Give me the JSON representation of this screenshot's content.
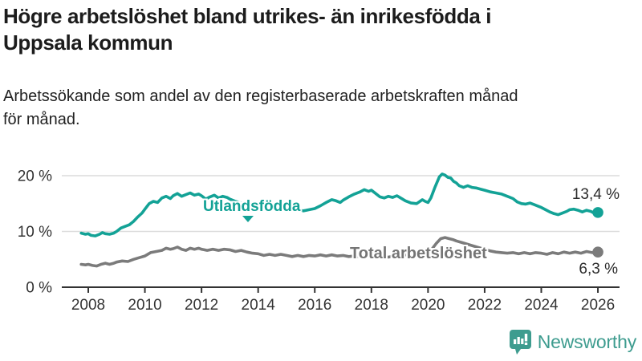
{
  "title": {
    "line1": "Högre arbetslöshet bland utrikes- än inrikesfödda i",
    "line2": "Uppsala kommun"
  },
  "subtitle": {
    "line1": "Arbetssökande som andel av den registerbaserade arbetskraften månad",
    "line2": "för månad."
  },
  "chart_data": {
    "type": "line",
    "title": "Högre arbetslöshet bland utrikes- än inrikesfödda i Uppsala kommun",
    "xlabel": "",
    "ylabel": "",
    "grid": true,
    "legend_position": "inline-labels",
    "xlim": [
      2007.6,
      2026.8
    ],
    "ylim": [
      0,
      21.5
    ],
    "x_ticks": [
      2008,
      2010,
      2012,
      2014,
      2016,
      2018,
      2020,
      2022,
      2024,
      2026
    ],
    "y_ticks": [
      {
        "value": 0,
        "label": "0 %"
      },
      {
        "value": 10,
        "label": "10 %"
      },
      {
        "value": 20,
        "label": "20 %"
      }
    ],
    "series": [
      {
        "name": "Utlandsfödda",
        "color": "#13a296",
        "end_label": "13,4 %",
        "end_value": 13.4,
        "points": [
          [
            2007.75,
            9.7
          ],
          [
            2007.9,
            9.5
          ],
          [
            2008.0,
            9.6
          ],
          [
            2008.1,
            9.3
          ],
          [
            2008.25,
            9.2
          ],
          [
            2008.4,
            9.5
          ],
          [
            2008.5,
            9.8
          ],
          [
            2008.6,
            9.6
          ],
          [
            2008.75,
            9.5
          ],
          [
            2008.9,
            9.7
          ],
          [
            2009.0,
            10.0
          ],
          [
            2009.15,
            10.6
          ],
          [
            2009.3,
            10.9
          ],
          [
            2009.45,
            11.2
          ],
          [
            2009.6,
            11.8
          ],
          [
            2009.75,
            12.6
          ],
          [
            2009.9,
            13.3
          ],
          [
            2010.0,
            14.0
          ],
          [
            2010.15,
            15.0
          ],
          [
            2010.3,
            15.4
          ],
          [
            2010.45,
            15.2
          ],
          [
            2010.6,
            16.0
          ],
          [
            2010.75,
            16.3
          ],
          [
            2010.9,
            15.9
          ],
          [
            2011.0,
            16.4
          ],
          [
            2011.15,
            16.8
          ],
          [
            2011.3,
            16.3
          ],
          [
            2011.45,
            16.6
          ],
          [
            2011.6,
            16.9
          ],
          [
            2011.75,
            16.5
          ],
          [
            2011.9,
            16.7
          ],
          [
            2012.0,
            16.4
          ],
          [
            2012.15,
            15.8
          ],
          [
            2012.3,
            16.2
          ],
          [
            2012.45,
            16.5
          ],
          [
            2012.6,
            16.0
          ],
          [
            2012.75,
            16.3
          ],
          [
            2012.9,
            16.1
          ],
          [
            2013.0,
            15.8
          ],
          [
            2013.2,
            15.4
          ],
          [
            2013.4,
            15.1
          ],
          [
            2013.6,
            14.8
          ],
          [
            2013.8,
            14.6
          ],
          [
            2014.0,
            14.4
          ],
          [
            2014.2,
            14.2
          ],
          [
            2014.4,
            14.0
          ],
          [
            2014.6,
            14.2
          ],
          [
            2014.8,
            14.0
          ],
          [
            2015.0,
            13.9
          ],
          [
            2015.2,
            14.1
          ],
          [
            2015.4,
            13.8
          ],
          [
            2015.6,
            13.7
          ],
          [
            2015.8,
            13.9
          ],
          [
            2016.0,
            14.1
          ],
          [
            2016.2,
            14.6
          ],
          [
            2016.4,
            15.2
          ],
          [
            2016.6,
            15.7
          ],
          [
            2016.75,
            15.5
          ],
          [
            2016.9,
            15.2
          ],
          [
            2017.0,
            15.6
          ],
          [
            2017.2,
            16.2
          ],
          [
            2017.4,
            16.7
          ],
          [
            2017.6,
            17.1
          ],
          [
            2017.75,
            17.5
          ],
          [
            2017.9,
            17.2
          ],
          [
            2018.0,
            17.4
          ],
          [
            2018.15,
            16.8
          ],
          [
            2018.3,
            16.2
          ],
          [
            2018.45,
            16.0
          ],
          [
            2018.6,
            16.3
          ],
          [
            2018.75,
            16.1
          ],
          [
            2018.9,
            16.4
          ],
          [
            2019.0,
            16.1
          ],
          [
            2019.2,
            15.5
          ],
          [
            2019.4,
            15.1
          ],
          [
            2019.6,
            15.0
          ],
          [
            2019.8,
            15.7
          ],
          [
            2019.9,
            15.4
          ],
          [
            2020.0,
            15.2
          ],
          [
            2020.1,
            16.0
          ],
          [
            2020.25,
            18.0
          ],
          [
            2020.4,
            19.8
          ],
          [
            2020.5,
            20.3
          ],
          [
            2020.6,
            20.1
          ],
          [
            2020.7,
            19.7
          ],
          [
            2020.8,
            19.6
          ],
          [
            2020.9,
            19.0
          ],
          [
            2021.0,
            18.7
          ],
          [
            2021.1,
            18.2
          ],
          [
            2021.25,
            17.9
          ],
          [
            2021.4,
            18.2
          ],
          [
            2021.55,
            17.9
          ],
          [
            2021.7,
            17.8
          ],
          [
            2021.85,
            17.6
          ],
          [
            2022.0,
            17.4
          ],
          [
            2022.2,
            17.1
          ],
          [
            2022.4,
            16.9
          ],
          [
            2022.6,
            16.7
          ],
          [
            2022.8,
            16.3
          ],
          [
            2023.0,
            15.9
          ],
          [
            2023.15,
            15.3
          ],
          [
            2023.3,
            15.0
          ],
          [
            2023.45,
            14.9
          ],
          [
            2023.6,
            15.1
          ],
          [
            2023.75,
            14.8
          ],
          [
            2023.9,
            14.5
          ],
          [
            2024.0,
            14.3
          ],
          [
            2024.15,
            13.9
          ],
          [
            2024.3,
            13.5
          ],
          [
            2024.45,
            13.2
          ],
          [
            2024.6,
            13.0
          ],
          [
            2024.75,
            13.3
          ],
          [
            2024.9,
            13.6
          ],
          [
            2025.0,
            13.9
          ],
          [
            2025.15,
            14.0
          ],
          [
            2025.3,
            13.8
          ],
          [
            2025.45,
            13.5
          ],
          [
            2025.6,
            13.8
          ],
          [
            2025.75,
            13.6
          ],
          [
            2025.9,
            13.2
          ],
          [
            2026.0,
            13.4
          ]
        ]
      },
      {
        "name": "Total arbetslöshet",
        "color": "#7b7b7b",
        "end_label": "6,3 %",
        "end_value": 6.3,
        "points": [
          [
            2007.75,
            4.1
          ],
          [
            2007.9,
            4.0
          ],
          [
            2008.0,
            4.1
          ],
          [
            2008.15,
            3.9
          ],
          [
            2008.3,
            3.8
          ],
          [
            2008.45,
            4.1
          ],
          [
            2008.6,
            4.3
          ],
          [
            2008.75,
            4.1
          ],
          [
            2008.9,
            4.3
          ],
          [
            2009.0,
            4.5
          ],
          [
            2009.2,
            4.7
          ],
          [
            2009.4,
            4.6
          ],
          [
            2009.6,
            5.0
          ],
          [
            2009.8,
            5.3
          ],
          [
            2010.0,
            5.6
          ],
          [
            2010.2,
            6.2
          ],
          [
            2010.4,
            6.4
          ],
          [
            2010.6,
            6.6
          ],
          [
            2010.75,
            7.0
          ],
          [
            2010.9,
            6.8
          ],
          [
            2011.0,
            6.9
          ],
          [
            2011.15,
            7.2
          ],
          [
            2011.3,
            6.8
          ],
          [
            2011.45,
            6.6
          ],
          [
            2011.6,
            7.0
          ],
          [
            2011.75,
            6.8
          ],
          [
            2011.9,
            7.0
          ],
          [
            2012.0,
            6.8
          ],
          [
            2012.2,
            6.6
          ],
          [
            2012.4,
            6.8
          ],
          [
            2012.6,
            6.6
          ],
          [
            2012.8,
            6.8
          ],
          [
            2013.0,
            6.7
          ],
          [
            2013.2,
            6.4
          ],
          [
            2013.4,
            6.6
          ],
          [
            2013.6,
            6.3
          ],
          [
            2013.8,
            6.1
          ],
          [
            2014.0,
            6.0
          ],
          [
            2014.2,
            5.7
          ],
          [
            2014.4,
            5.9
          ],
          [
            2014.6,
            5.7
          ],
          [
            2014.8,
            5.9
          ],
          [
            2015.0,
            5.7
          ],
          [
            2015.2,
            5.5
          ],
          [
            2015.4,
            5.7
          ],
          [
            2015.6,
            5.5
          ],
          [
            2015.8,
            5.7
          ],
          [
            2016.0,
            5.6
          ],
          [
            2016.2,
            5.8
          ],
          [
            2016.4,
            5.6
          ],
          [
            2016.6,
            5.8
          ],
          [
            2016.8,
            5.6
          ],
          [
            2017.0,
            5.7
          ],
          [
            2017.2,
            5.5
          ],
          [
            2017.4,
            5.6
          ],
          [
            2017.6,
            5.4
          ],
          [
            2017.8,
            5.6
          ],
          [
            2018.0,
            5.5
          ],
          [
            2018.2,
            5.3
          ],
          [
            2018.4,
            5.5
          ],
          [
            2018.6,
            5.4
          ],
          [
            2018.8,
            5.6
          ],
          [
            2019.0,
            5.7
          ],
          [
            2019.2,
            5.8
          ],
          [
            2019.4,
            5.9
          ],
          [
            2019.6,
            6.0
          ],
          [
            2019.8,
            6.1
          ],
          [
            2020.0,
            6.2
          ],
          [
            2020.15,
            6.9
          ],
          [
            2020.3,
            7.9
          ],
          [
            2020.45,
            8.7
          ],
          [
            2020.6,
            8.9
          ],
          [
            2020.75,
            8.7
          ],
          [
            2020.9,
            8.5
          ],
          [
            2021.0,
            8.3
          ],
          [
            2021.2,
            8.0
          ],
          [
            2021.4,
            7.7
          ],
          [
            2021.6,
            7.4
          ],
          [
            2021.8,
            7.1
          ],
          [
            2022.0,
            6.8
          ],
          [
            2022.2,
            6.5
          ],
          [
            2022.4,
            6.3
          ],
          [
            2022.6,
            6.2
          ],
          [
            2022.8,
            6.1
          ],
          [
            2023.0,
            6.2
          ],
          [
            2023.2,
            6.0
          ],
          [
            2023.4,
            6.2
          ],
          [
            2023.6,
            6.0
          ],
          [
            2023.8,
            6.2
          ],
          [
            2024.0,
            6.1
          ],
          [
            2024.2,
            5.9
          ],
          [
            2024.4,
            6.2
          ],
          [
            2024.6,
            6.0
          ],
          [
            2024.8,
            6.3
          ],
          [
            2025.0,
            6.1
          ],
          [
            2025.2,
            6.3
          ],
          [
            2025.4,
            6.1
          ],
          [
            2025.6,
            6.4
          ],
          [
            2025.8,
            6.2
          ],
          [
            2026.0,
            6.3
          ]
        ]
      }
    ],
    "colors": {
      "utlandsfodda": "#13a296",
      "total": "#7b7b7b",
      "gridline": "#dcdcdc",
      "axis": "#333333",
      "tick_label": "#333333",
      "end_label": "#2b2b2b"
    }
  },
  "annotations": {
    "utlandsfodda_label": "Utlandsfödda",
    "total_label": "Total arbetslöshet",
    "teal_end_value": "13,4 %",
    "gray_end_value": "6,3 %"
  },
  "footer": {
    "brand": "Newsworthy",
    "brand_color": "#3e9c8f"
  }
}
